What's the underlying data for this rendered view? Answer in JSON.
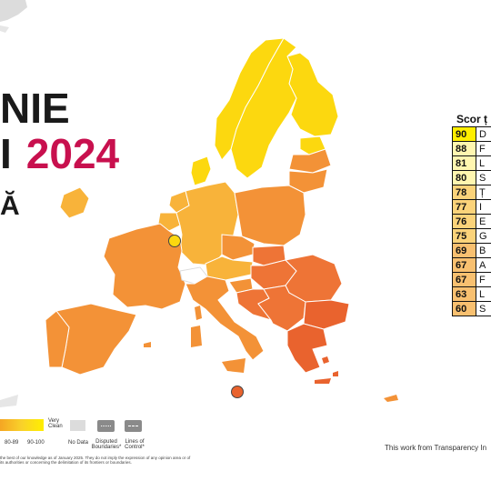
{
  "title": {
    "line1": "NIE",
    "line2_prefix": "I",
    "line2_year": "2024",
    "line3": "Ă"
  },
  "score_table": {
    "header": "Scor ț",
    "rows": [
      {
        "score": "90",
        "code": "D",
        "color": "#ffee00"
      },
      {
        "score": "88",
        "code": "F",
        "color": "#fff6b0"
      },
      {
        "score": "81",
        "code": "L",
        "color": "#fff6b0"
      },
      {
        "score": "80",
        "code": "S",
        "color": "#fff6b0"
      },
      {
        "score": "78",
        "code": "Ț",
        "color": "#fbd37a"
      },
      {
        "score": "77",
        "code": "I",
        "color": "#fbd37a"
      },
      {
        "score": "76",
        "code": "E",
        "color": "#fbd37a"
      },
      {
        "score": "75",
        "code": "G",
        "color": "#fbd37a"
      },
      {
        "score": "69",
        "code": "B",
        "color": "#f8c070"
      },
      {
        "score": "67",
        "code": "A",
        "color": "#f8c070"
      },
      {
        "score": "67",
        "code": "F",
        "color": "#f8c070"
      },
      {
        "score": "63",
        "code": "L",
        "color": "#f8c070"
      },
      {
        "score": "60",
        "code": "S",
        "color": "#f8c070"
      }
    ]
  },
  "legend": {
    "very_clean": "Very Clean",
    "range_80_89": "80-89",
    "range_90_100": "90-100",
    "no_data": "No Data",
    "disputed": "Disputed Boundaries*",
    "lines_of_control": "Lines of Control*"
  },
  "disclaimer": "the best of our knowledge as of January 2025. They do not imply the expression of any opinion area or of its authorities or concerning the delimitation of its frontiers or boundaries.",
  "credit": "This work from Transparency In",
  "colors": {
    "yellow": "#fcd80f",
    "light_orange": "#f8b33a",
    "orange": "#f39237",
    "dark_orange": "#ee7436",
    "red_orange": "#e9632e",
    "accent_magenta": "#c8104e",
    "no_data": "#dcdcdc"
  }
}
